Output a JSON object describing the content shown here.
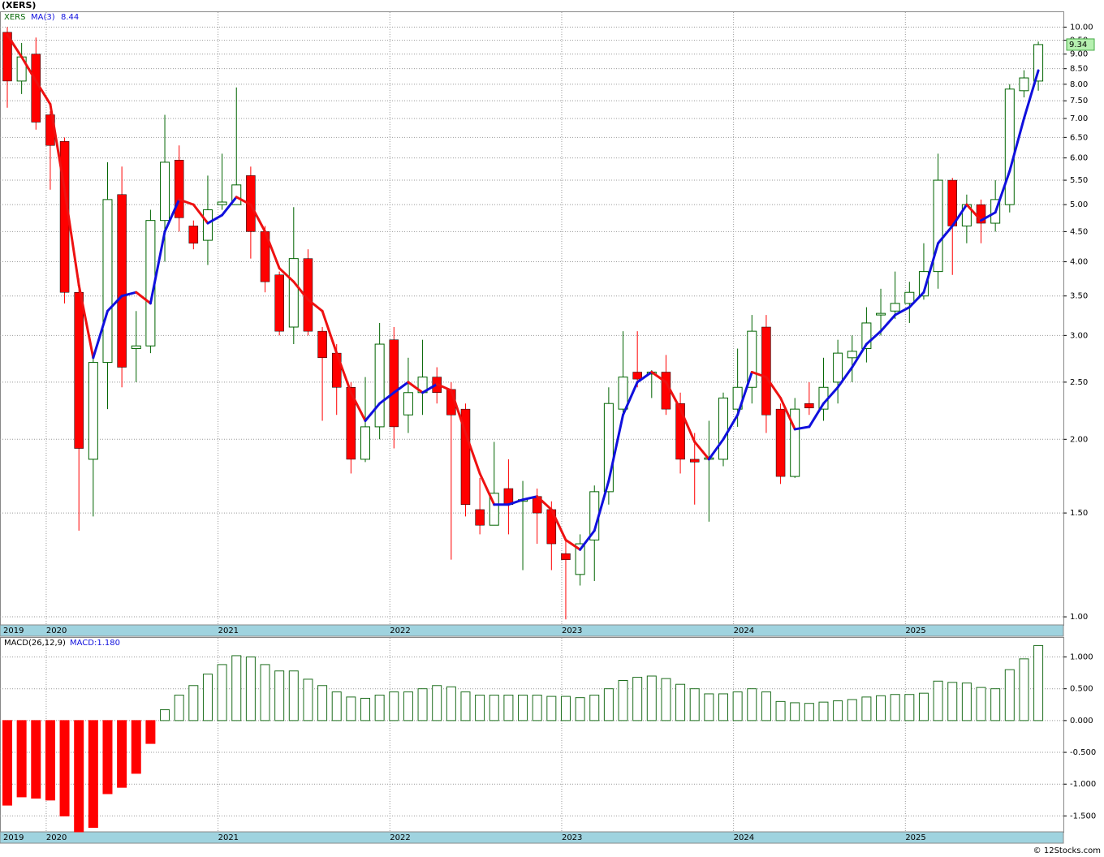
{
  "chart_data": [
    {
      "type": "candlestick",
      "title": "(XERS)",
      "symbol": "XERS",
      "log_scale": true,
      "grid": true,
      "up_color": "#006400",
      "down_color": "#ff0000",
      "categories": [
        "2019",
        null,
        null,
        "2020",
        null,
        null,
        null,
        null,
        null,
        null,
        null,
        null,
        null,
        null,
        null,
        "2021",
        null,
        null,
        null,
        null,
        null,
        null,
        null,
        null,
        null,
        null,
        null,
        "2022",
        null,
        null,
        null,
        null,
        null,
        null,
        null,
        null,
        null,
        null,
        null,
        "2023",
        null,
        null,
        null,
        null,
        null,
        null,
        null,
        null,
        null,
        null,
        null,
        "2024",
        null,
        null,
        null,
        null,
        null,
        null,
        null,
        null,
        null,
        null,
        null,
        "2025",
        null,
        null,
        null,
        null,
        null,
        null,
        null,
        null,
        null
      ],
      "open": [
        9.8,
        8.1,
        9.0,
        7.1,
        6.4,
        3.55,
        1.85,
        2.7,
        5.2,
        2.85,
        2.88,
        4.7,
        5.95,
        4.6,
        4.35,
        5.0,
        5.0,
        5.6,
        4.5,
        3.8,
        3.1,
        4.05,
        3.05,
        2.8,
        2.45,
        1.85,
        2.1,
        2.95,
        2.2,
        2.4,
        2.55,
        2.43,
        2.25,
        1.52,
        1.43,
        1.65,
        1.57,
        1.6,
        1.52,
        1.28,
        1.18,
        1.35,
        1.63,
        2.25,
        2.6,
        2.58,
        2.6,
        2.3,
        1.85,
        1.85,
        1.85,
        2.25,
        2.45,
        3.1,
        2.25,
        1.73,
        2.3,
        2.25,
        2.5,
        2.75,
        2.85,
        3.25,
        3.3,
        3.4,
        3.5,
        3.85,
        5.5,
        4.6,
        5.0,
        4.65,
        5.0,
        7.8,
        8.1
      ],
      "high": [
        10.0,
        9.4,
        9.6,
        7.2,
        6.5,
        3.75,
        2.75,
        5.9,
        5.8,
        3.3,
        4.9,
        7.1,
        6.3,
        4.7,
        5.6,
        6.1,
        7.9,
        5.8,
        4.6,
        3.85,
        4.95,
        4.2,
        3.1,
        2.9,
        2.5,
        2.55,
        3.15,
        3.1,
        2.75,
        2.95,
        2.65,
        2.5,
        2.3,
        1.72,
        1.98,
        1.85,
        1.7,
        1.65,
        1.57,
        1.35,
        1.38,
        1.67,
        2.45,
        3.05,
        3.05,
        2.62,
        2.78,
        2.4,
        2.05,
        2.15,
        2.4,
        2.85,
        3.25,
        3.25,
        2.3,
        2.35,
        2.5,
        2.75,
        2.95,
        3.0,
        3.35,
        3.6,
        3.85,
        3.7,
        4.3,
        6.1,
        5.55,
        5.2,
        5.1,
        5.5,
        8.0,
        8.45,
        9.45
      ],
      "low": [
        7.3,
        7.7,
        6.7,
        5.3,
        3.4,
        1.4,
        1.48,
        2.25,
        2.45,
        2.5,
        2.8,
        4.0,
        4.5,
        4.2,
        3.95,
        4.9,
        5.0,
        4.05,
        3.55,
        3.0,
        2.9,
        3.0,
        2.15,
        2.2,
        1.75,
        1.83,
        2.0,
        1.93,
        2.05,
        2.2,
        2.3,
        1.25,
        1.48,
        1.38,
        1.43,
        1.38,
        1.2,
        1.33,
        1.2,
        0.99,
        1.13,
        1.15,
        1.55,
        2.2,
        2.45,
        2.35,
        2.2,
        1.75,
        1.55,
        1.45,
        1.8,
        2.1,
        2.3,
        2.05,
        1.68,
        1.72,
        2.2,
        2.15,
        2.3,
        2.5,
        2.7,
        3.0,
        3.2,
        3.15,
        3.45,
        3.6,
        3.8,
        4.3,
        4.3,
        4.5,
        4.85,
        7.6,
        7.8
      ],
      "close": [
        8.1,
        8.9,
        6.9,
        6.3,
        3.55,
        1.93,
        2.7,
        5.1,
        2.65,
        2.88,
        4.7,
        5.9,
        4.75,
        4.3,
        4.9,
        5.05,
        5.4,
        4.5,
        3.7,
        3.05,
        4.05,
        3.05,
        2.75,
        2.45,
        1.85,
        2.1,
        2.9,
        2.1,
        2.4,
        2.55,
        2.4,
        2.2,
        1.55,
        1.43,
        1.62,
        1.55,
        1.58,
        1.5,
        1.33,
        1.25,
        1.33,
        1.63,
        2.3,
        2.55,
        2.53,
        2.6,
        2.25,
        1.85,
        1.83,
        1.86,
        2.35,
        2.45,
        3.05,
        2.2,
        1.73,
        2.25,
        2.26,
        2.45,
        2.8,
        2.82,
        3.15,
        3.27,
        3.4,
        3.55,
        3.85,
        5.5,
        4.6,
        5.0,
        4.65,
        5.1,
        7.85,
        8.2,
        9.34
      ],
      "ma": {
        "name": "MA(3)",
        "up_color": "#1010dd",
        "down_color": "#ee1111",
        "values": [
          9.7,
          8.9,
          8.1,
          7.4,
          5.3,
          3.65,
          2.75,
          3.3,
          3.5,
          3.55,
          3.4,
          4.5,
          5.1,
          5.0,
          4.65,
          4.8,
          5.15,
          5.0,
          4.5,
          3.9,
          3.7,
          3.45,
          3.3,
          2.8,
          2.4,
          2.15,
          2.3,
          2.4,
          2.5,
          2.4,
          2.48,
          2.42,
          2.05,
          1.75,
          1.55,
          1.55,
          1.58,
          1.6,
          1.52,
          1.35,
          1.3,
          1.4,
          1.7,
          2.2,
          2.5,
          2.6,
          2.5,
          2.25,
          1.98,
          1.85,
          2.0,
          2.2,
          2.6,
          2.55,
          2.35,
          2.08,
          2.1,
          2.3,
          2.45,
          2.65,
          2.9,
          3.05,
          3.25,
          3.35,
          3.55,
          4.3,
          4.6,
          5.0,
          4.7,
          4.85,
          5.7,
          7.0,
          8.44
        ]
      },
      "ylim": [
        0.969,
        10.6
      ],
      "yticks": [
        {
          "value": 1,
          "label": "1.00"
        },
        {
          "value": 1.5,
          "label": "1.50"
        },
        {
          "value": 2,
          "label": "2.00"
        },
        {
          "value": 2.5,
          "label": "2.50"
        },
        {
          "value": 3,
          "label": "3.00"
        },
        {
          "value": 3.5,
          "label": "3.50"
        },
        {
          "value": 4,
          "label": "4.00"
        },
        {
          "value": 4.5,
          "label": "4.50"
        },
        {
          "value": 5,
          "label": "5.00"
        },
        {
          "value": 5.5,
          "label": "5.50"
        },
        {
          "value": 6,
          "label": "6.00"
        },
        {
          "value": 6.5,
          "label": "6.50"
        },
        {
          "value": 7,
          "label": "7.00"
        },
        {
          "value": 7.5,
          "label": "7.50"
        },
        {
          "value": 8,
          "label": "8.00"
        },
        {
          "value": 8.5,
          "label": "8.50"
        },
        {
          "value": 9,
          "label": "9.00"
        },
        {
          "value": 9.5,
          "label": "9.50"
        },
        {
          "value": 10,
          "label": "10.00"
        }
      ]
    },
    {
      "type": "bar",
      "name": "MACD(26,12,9)",
      "label": "MACD:1.180",
      "grid": true,
      "up_color": "#1e6e1e",
      "down_color": "#ff0000",
      "categories": [
        "2019",
        null,
        null,
        "2020",
        null,
        null,
        null,
        null,
        null,
        null,
        null,
        null,
        null,
        null,
        null,
        "2021",
        null,
        null,
        null,
        null,
        null,
        null,
        null,
        null,
        null,
        null,
        null,
        "2022",
        null,
        null,
        null,
        null,
        null,
        null,
        null,
        null,
        null,
        null,
        null,
        "2023",
        null,
        null,
        null,
        null,
        null,
        null,
        null,
        null,
        null,
        null,
        null,
        "2024",
        null,
        null,
        null,
        null,
        null,
        null,
        null,
        null,
        null,
        null,
        null,
        "2025",
        null,
        null,
        null,
        null,
        null,
        null,
        null,
        null,
        null
      ],
      "values": [
        -1.33,
        -1.2,
        -1.22,
        -1.25,
        -1.5,
        -1.75,
        -1.68,
        -1.15,
        -1.05,
        -0.83,
        -0.36,
        0.17,
        0.4,
        0.55,
        0.73,
        0.88,
        1.02,
        1.0,
        0.88,
        0.78,
        0.78,
        0.65,
        0.55,
        0.45,
        0.37,
        0.35,
        0.4,
        0.45,
        0.45,
        0.5,
        0.55,
        0.53,
        0.45,
        0.4,
        0.4,
        0.4,
        0.4,
        0.4,
        0.38,
        0.38,
        0.36,
        0.4,
        0.5,
        0.63,
        0.68,
        0.7,
        0.66,
        0.57,
        0.5,
        0.42,
        0.42,
        0.45,
        0.5,
        0.45,
        0.3,
        0.28,
        0.27,
        0.29,
        0.31,
        0.33,
        0.37,
        0.39,
        0.41,
        0.41,
        0.43,
        0.62,
        0.6,
        0.59,
        0.52,
        0.5,
        0.8,
        0.97,
        1.18
      ],
      "ylim": [
        -1.75,
        1.3
      ],
      "yticks": [
        {
          "value": 1,
          "label": "1.000"
        },
        {
          "value": 0.5,
          "label": "0.500"
        },
        {
          "value": 0,
          "label": "0.000"
        },
        {
          "value": -0.5,
          "label": "-0.500"
        },
        {
          "value": -1,
          "label": "-1.000"
        },
        {
          "value": -1.5,
          "label": "-1.500"
        }
      ]
    }
  ],
  "footer": "© 12Stocks.com"
}
